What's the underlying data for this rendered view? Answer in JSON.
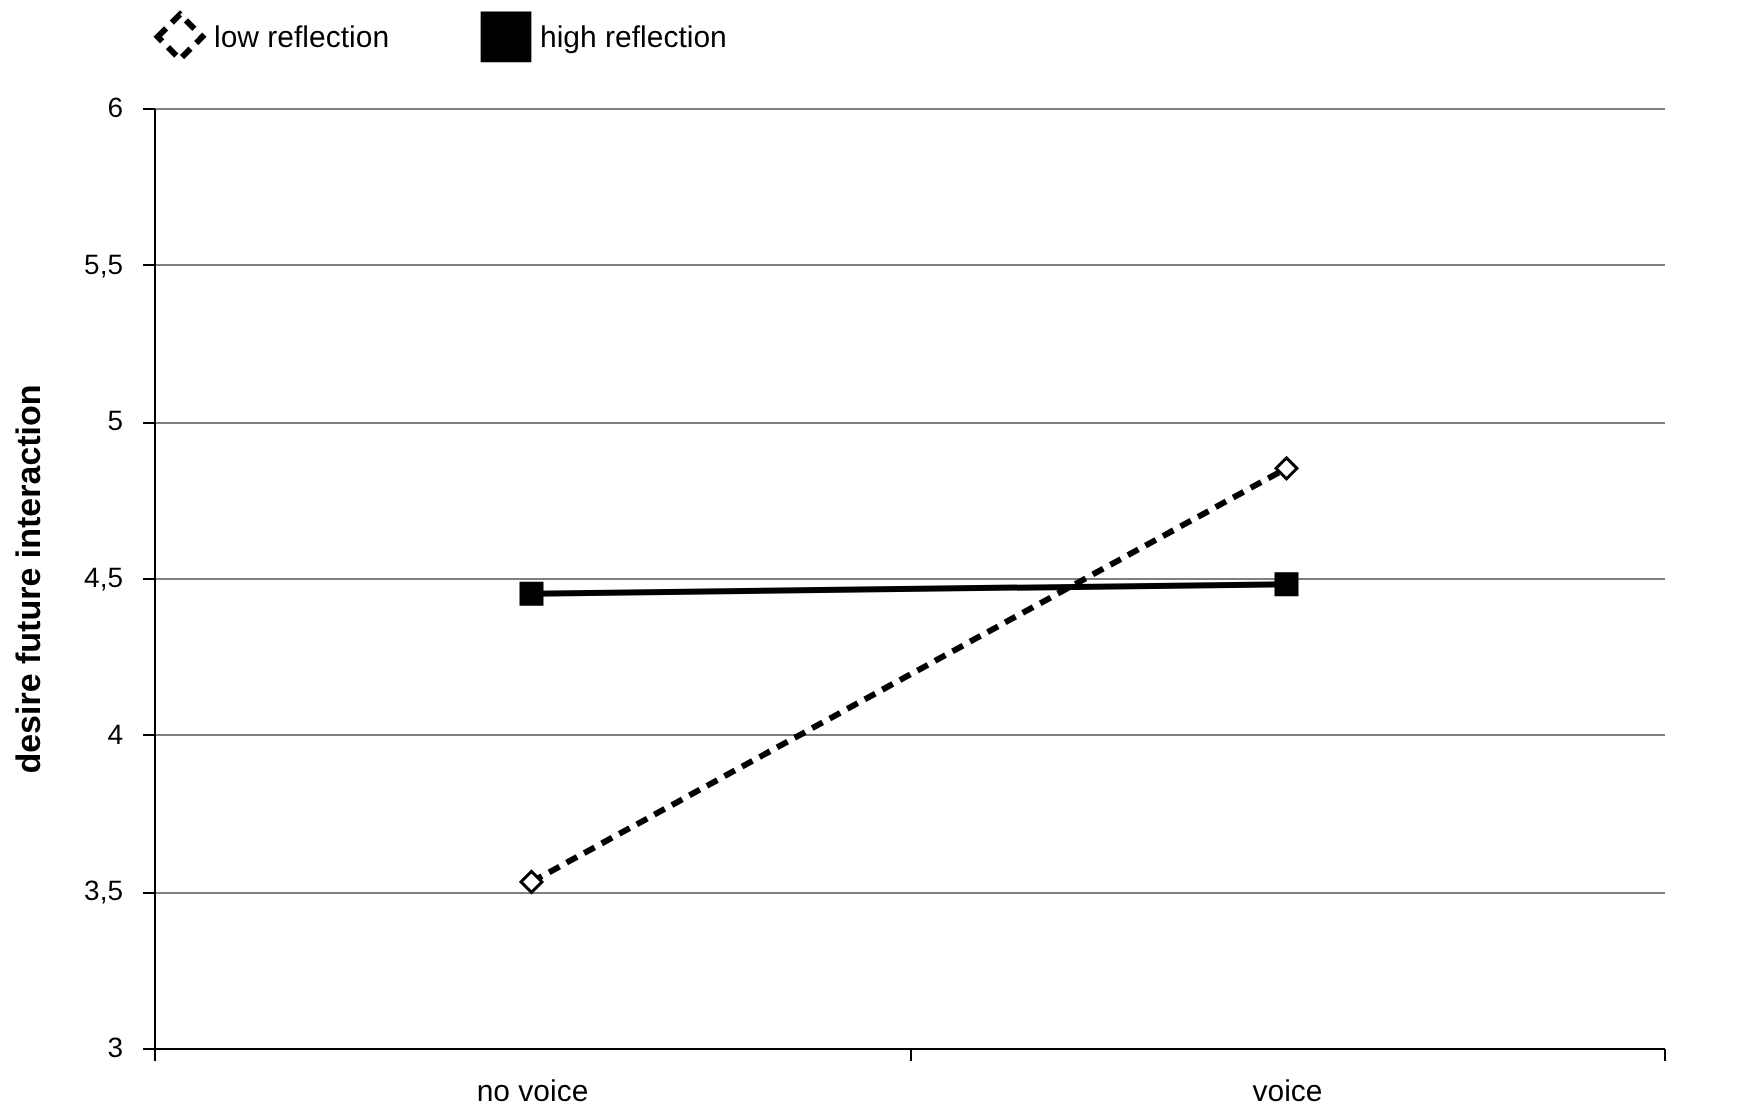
{
  "chart_data": {
    "type": "line",
    "ylabel": "desire future interaction",
    "categories": [
      "no voice",
      "voice"
    ],
    "series": [
      {
        "name": "low reflection",
        "color": "#000000",
        "values": [
          3.53,
          4.85
        ],
        "marker": "diamond",
        "line_style": "dashed"
      },
      {
        "name": "high reflection",
        "color": "#000000",
        "values": [
          4.45,
          4.48
        ],
        "marker": "square",
        "line_style": "solid"
      }
    ],
    "ylim": [
      3,
      6
    ],
    "yticks": [
      3,
      {
        "value": 3.5,
        "label": "3,5"
      },
      4,
      {
        "value": 4.5,
        "label": "4,5"
      },
      5,
      {
        "value": 5.5,
        "label": "5,5"
      },
      6
    ],
    "grid": "y",
    "legend": "top"
  }
}
